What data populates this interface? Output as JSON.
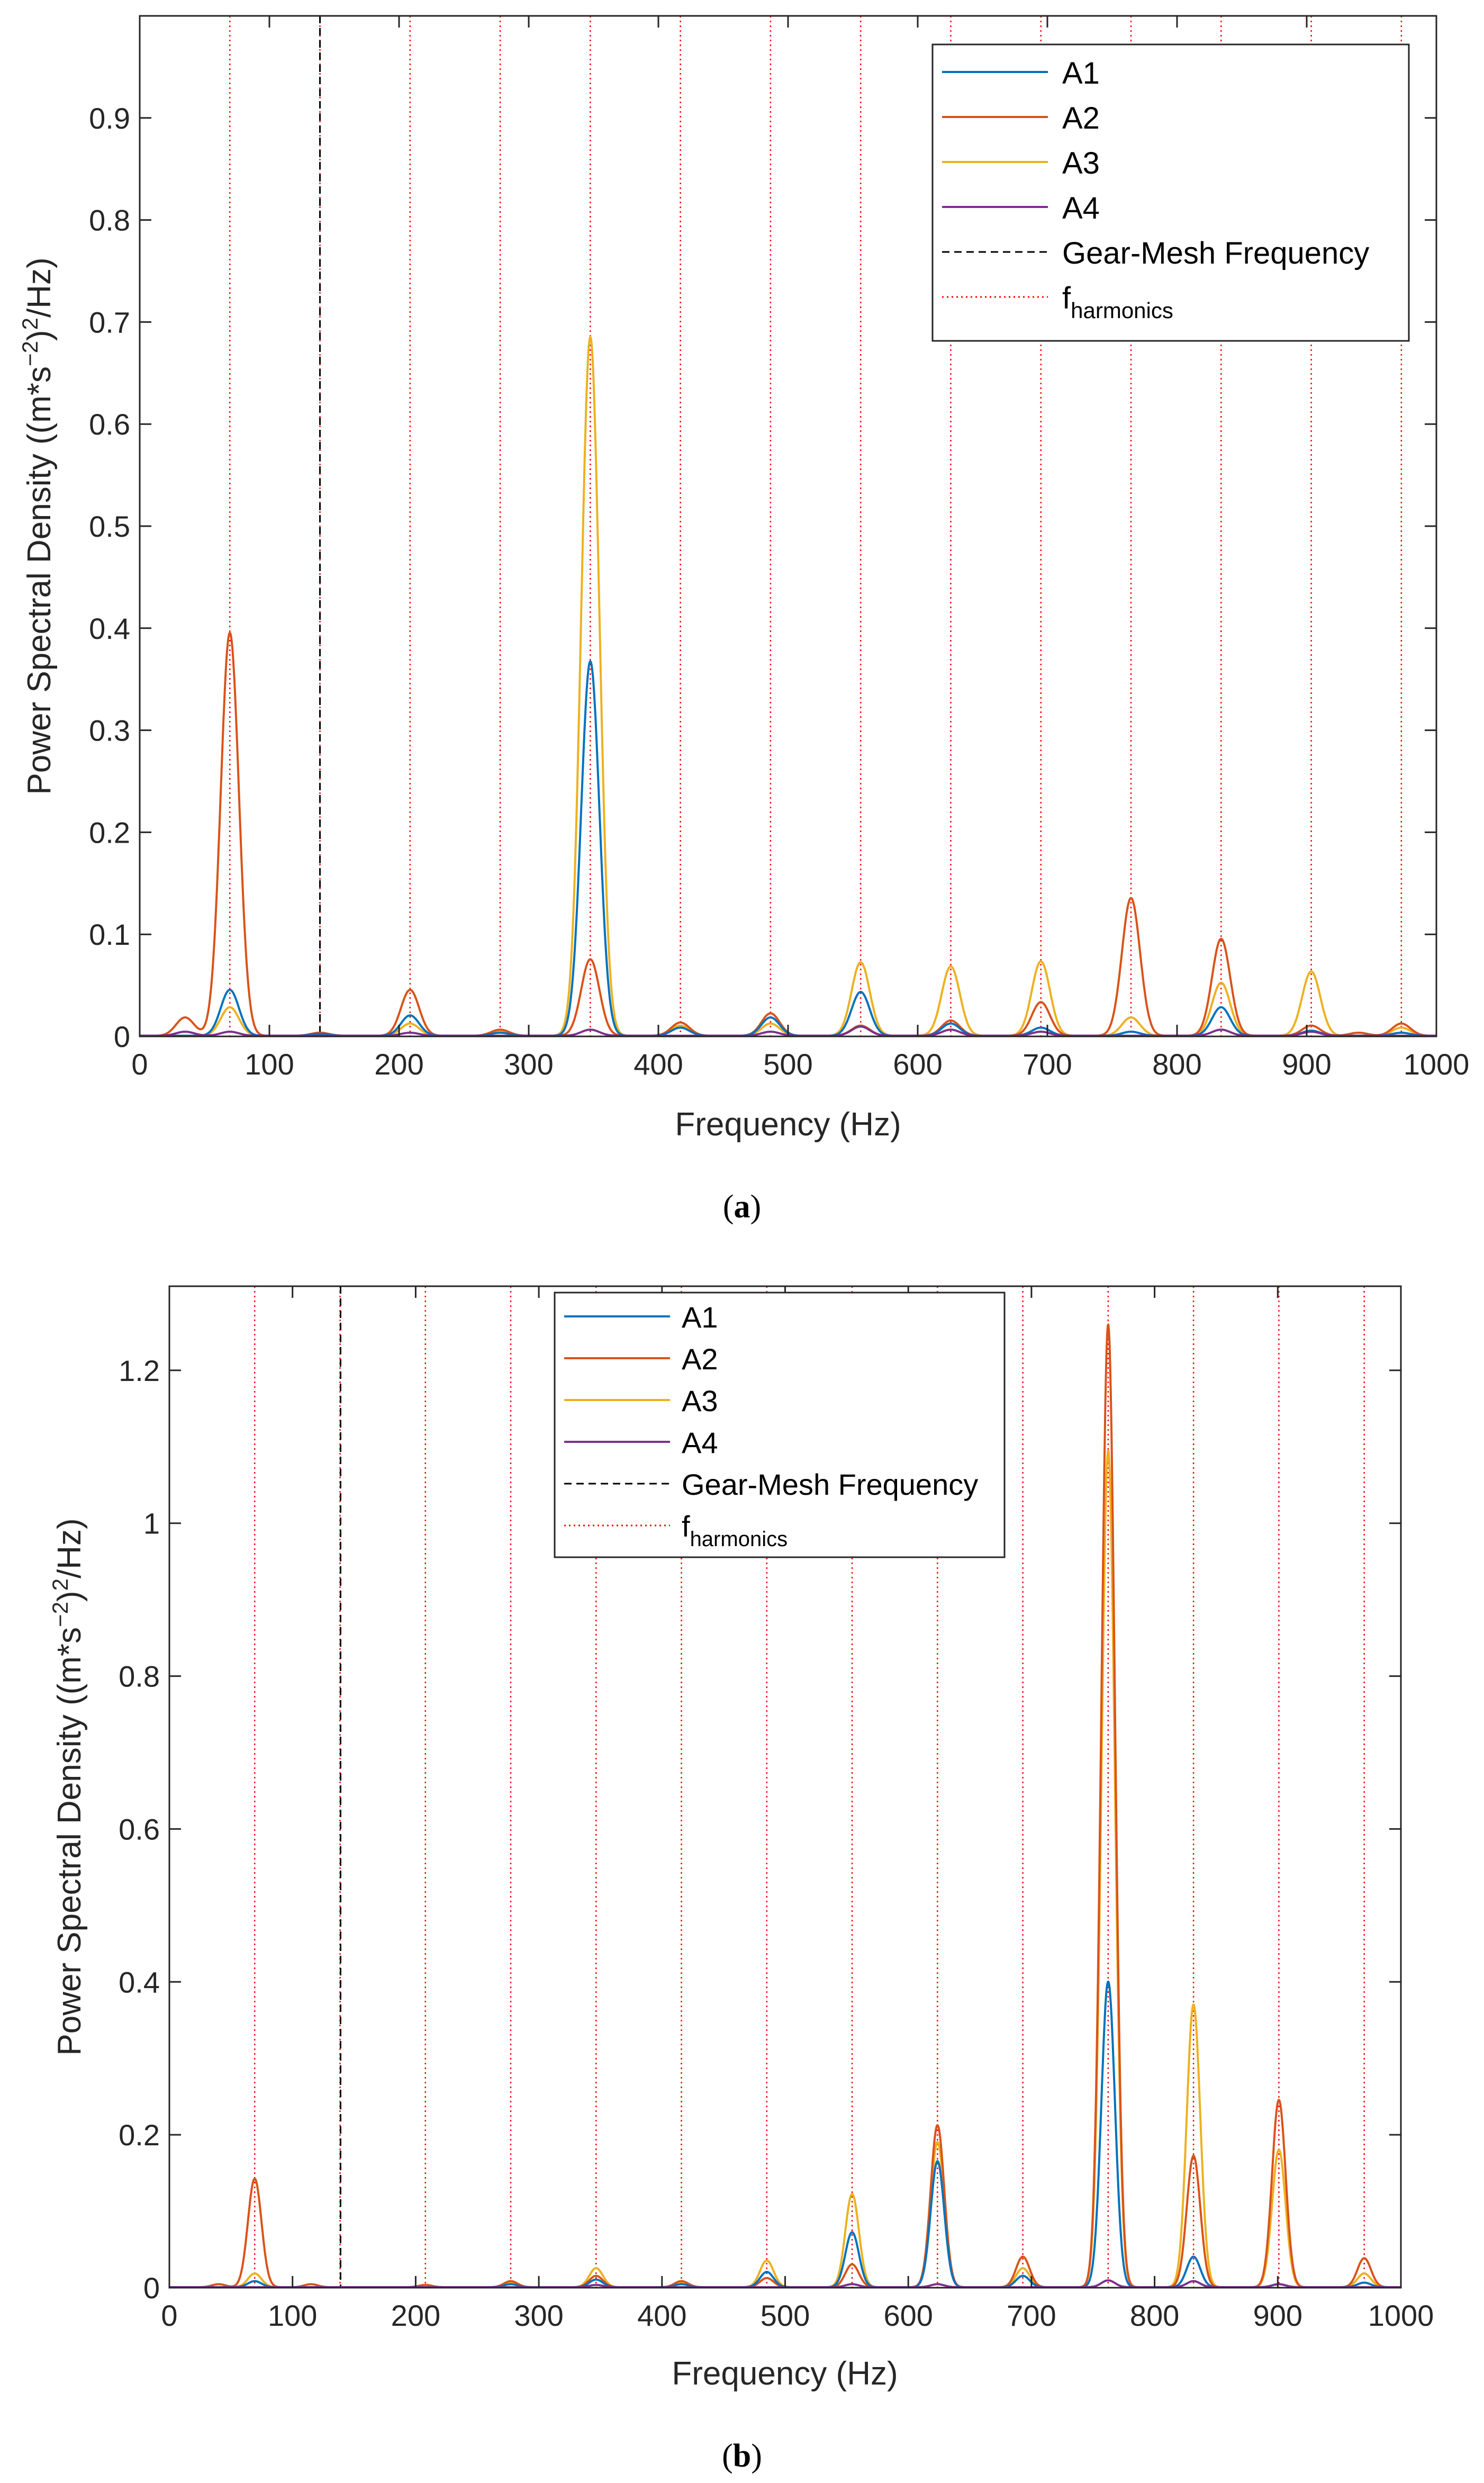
{
  "colors": {
    "A1": "#0072BD",
    "A2": "#D95319",
    "A3": "#EDB120",
    "A4": "#7E2F8E",
    "gmf": "#000000",
    "harmonics": "#FF0000",
    "axis": "#262626"
  },
  "chart_data": [
    {
      "type": "line",
      "panel": "a",
      "caption_label": "a",
      "xlabel": "Frequency (Hz)",
      "ylabel_main": "Power Spectral Density ((m*s",
      "ylabel_sup1": "−2",
      "ylabel_mid": ")",
      "ylabel_sup2": "2",
      "ylabel_end": "/Hz)",
      "xlim": [
        0,
        1000
      ],
      "ylim": [
        0,
        1
      ],
      "xticks": [
        0,
        100,
        200,
        300,
        400,
        500,
        600,
        700,
        800,
        900,
        1000
      ],
      "yticks": [
        0,
        0.1,
        0.2,
        0.3,
        0.4,
        0.5,
        0.6,
        0.7,
        0.8,
        0.9
      ],
      "ytick_labels": [
        "0",
        "0.1",
        "0.2",
        "0.3",
        "0.4",
        "0.5",
        "0.6",
        "0.7",
        "0.8",
        "0.9"
      ],
      "legend_position": "top-right",
      "legend": [
        "A1",
        "A2",
        "A3",
        "A4",
        "Gear-Mesh Frequency",
        "f",
        "harmonics"
      ],
      "gear_mesh_frequency": 139,
      "harmonics": [
        0,
        69.5,
        139,
        208.5,
        278,
        347.5,
        417,
        486.5,
        556,
        625.5,
        695,
        764.5,
        834,
        903.5,
        973
      ],
      "series": [
        {
          "name": "A1",
          "peaks": [
            [
              69.5,
              0.045
            ],
            [
              139,
              0.002
            ],
            [
              208.5,
              0.02
            ],
            [
              278,
              0.003
            ],
            [
              347.5,
              0.367
            ],
            [
              417,
              0.008
            ],
            [
              486.5,
              0.018
            ],
            [
              556,
              0.043
            ],
            [
              625.5,
              0.012
            ],
            [
              695,
              0.008
            ],
            [
              764.5,
              0.004
            ],
            [
              834,
              0.028
            ],
            [
              903.5,
              0.005
            ],
            [
              973,
              0.003
            ]
          ]
        },
        {
          "name": "A2",
          "peaks": [
            [
              35,
              0.018
            ],
            [
              69.5,
              0.395
            ],
            [
              139,
              0.003
            ],
            [
              208.5,
              0.045
            ],
            [
              278,
              0.006
            ],
            [
              347.5,
              0.075
            ],
            [
              417,
              0.013
            ],
            [
              486.5,
              0.022
            ],
            [
              556,
              0.01
            ],
            [
              625.5,
              0.015
            ],
            [
              695,
              0.033
            ],
            [
              764.5,
              0.135
            ],
            [
              834,
              0.095
            ],
            [
              903.5,
              0.01
            ],
            [
              940,
              0.003
            ],
            [
              973,
              0.012
            ]
          ]
        },
        {
          "name": "A3",
          "peaks": [
            [
              69.5,
              0.028
            ],
            [
              208.5,
              0.012
            ],
            [
              278,
              0.004
            ],
            [
              347.5,
              0.685
            ],
            [
              417,
              0.01
            ],
            [
              486.5,
              0.012
            ],
            [
              556,
              0.072
            ],
            [
              625.5,
              0.068
            ],
            [
              695,
              0.073
            ],
            [
              764.5,
              0.018
            ],
            [
              834,
              0.052
            ],
            [
              903.5,
              0.063
            ],
            [
              973,
              0.008
            ]
          ]
        },
        {
          "name": "A4",
          "peaks": [
            [
              35,
              0.004
            ],
            [
              69.5,
              0.004
            ],
            [
              208.5,
              0.003
            ],
            [
              347.5,
              0.006
            ],
            [
              486.5,
              0.004
            ],
            [
              556,
              0.009
            ],
            [
              625.5,
              0.006
            ],
            [
              695,
              0.004
            ],
            [
              834,
              0.006
            ],
            [
              903.5,
              0.004
            ]
          ]
        }
      ]
    },
    {
      "type": "line",
      "panel": "b",
      "caption_label": "b",
      "xlabel": "Frequency (Hz)",
      "ylabel_main": "Power Spectral Density ((m*s",
      "ylabel_sup1": "−2",
      "ylabel_mid": ")",
      "ylabel_sup2": "2",
      "ylabel_end": "/Hz)",
      "xlim": [
        0,
        1000
      ],
      "ylim": [
        0,
        1.31
      ],
      "xticks": [
        0,
        100,
        200,
        300,
        400,
        500,
        600,
        700,
        800,
        900,
        1000
      ],
      "yticks": [
        0,
        0.2,
        0.4,
        0.6,
        0.8,
        1,
        1.2
      ],
      "ytick_labels": [
        "0",
        "0.2",
        "0.4",
        "0.6",
        "0.8",
        "1",
        "1.2"
      ],
      "legend_position": "top-center",
      "legend": [
        "A1",
        "A2",
        "A3",
        "A4",
        "Gear-Mesh Frequency",
        "f",
        "harmonics"
      ],
      "gear_mesh_frequency": 139,
      "harmonics": [
        69.3,
        138.6,
        207.9,
        277.2,
        346.5,
        415.8,
        485.1,
        554.4,
        623.7,
        693,
        762.3,
        831.6,
        900.9,
        970.2
      ],
      "series": [
        {
          "name": "A1",
          "peaks": [
            [
              69.3,
              0.008
            ],
            [
              277.2,
              0.004
            ],
            [
              346.5,
              0.01
            ],
            [
              415.8,
              0.004
            ],
            [
              485.1,
              0.02
            ],
            [
              554.4,
              0.072
            ],
            [
              623.7,
              0.165
            ],
            [
              693,
              0.015
            ],
            [
              762.3,
              0.4
            ],
            [
              831.6,
              0.04
            ],
            [
              900.9,
              0.004
            ],
            [
              970.2,
              0.006
            ]
          ]
        },
        {
          "name": "A2",
          "peaks": [
            [
              40,
              0.004
            ],
            [
              69.3,
              0.142
            ],
            [
              115,
              0.004
            ],
            [
              207.9,
              0.003
            ],
            [
              277.2,
              0.008
            ],
            [
              346.5,
              0.015
            ],
            [
              415.8,
              0.008
            ],
            [
              485.1,
              0.012
            ],
            [
              554.4,
              0.03
            ],
            [
              623.7,
              0.212
            ],
            [
              693,
              0.04
            ],
            [
              762.3,
              1.26
            ],
            [
              831.6,
              0.172
            ],
            [
              900.9,
              0.245
            ],
            [
              970.2,
              0.038
            ]
          ]
        },
        {
          "name": "A3",
          "peaks": [
            [
              69.3,
              0.018
            ],
            [
              277.2,
              0.006
            ],
            [
              346.5,
              0.025
            ],
            [
              415.8,
              0.005
            ],
            [
              485.1,
              0.035
            ],
            [
              554.4,
              0.122
            ],
            [
              623.7,
              0.19
            ],
            [
              693,
              0.025
            ],
            [
              762.3,
              1.095
            ],
            [
              831.6,
              0.37
            ],
            [
              900.9,
              0.18
            ],
            [
              970.2,
              0.018
            ]
          ]
        },
        {
          "name": "A4",
          "peaks": [
            [
              346.5,
              0.003
            ],
            [
              554.4,
              0.004
            ],
            [
              623.7,
              0.004
            ],
            [
              762.3,
              0.009
            ],
            [
              831.6,
              0.008
            ],
            [
              900.9,
              0.004
            ]
          ]
        }
      ]
    }
  ]
}
